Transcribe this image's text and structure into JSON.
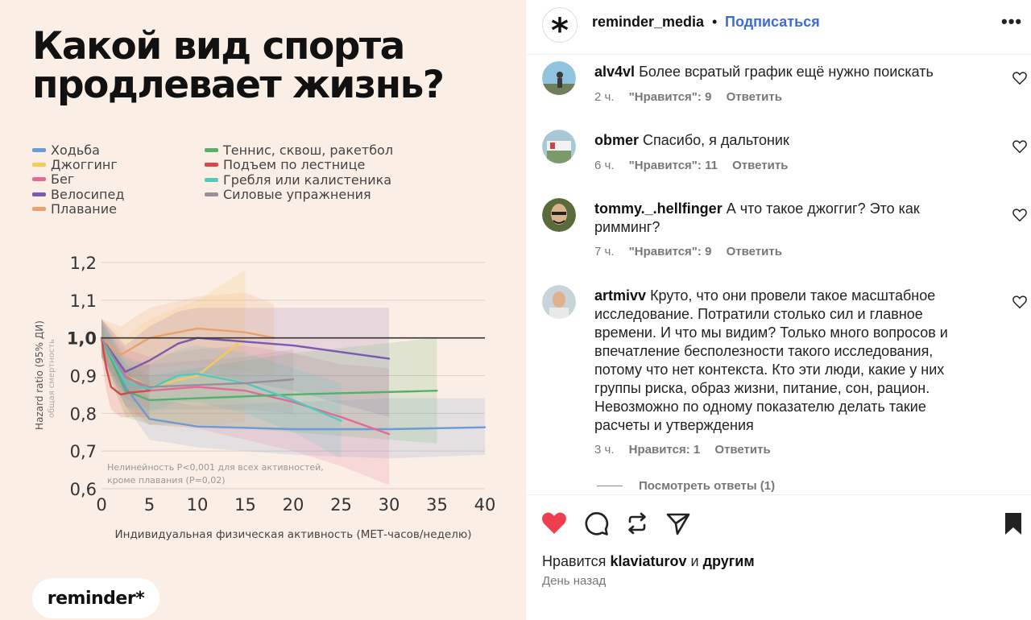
{
  "post": {
    "headline": [
      "Какой вид спорта",
      "продлевает жизнь?"
    ],
    "logo": "reminder*",
    "legend": [
      {
        "label": "Ходьба",
        "color": "#6d9bd3"
      },
      {
        "label": "Джоггинг",
        "color": "#f5c95a"
      },
      {
        "label": "Бег",
        "color": "#e46a95"
      },
      {
        "label": "Велосипед",
        "color": "#7a5bb0"
      },
      {
        "label": "Плавание",
        "color": "#eda06a"
      },
      {
        "label": "Теннис, сквош, ракетбол",
        "color": "#56b06a"
      },
      {
        "label": "Подъем по лестнице",
        "color": "#d6494a"
      },
      {
        "label": "Гребля или калистеника",
        "color": "#52c8c0"
      },
      {
        "label": "Силовые упражнения",
        "color": "#9a8e9a"
      }
    ]
  },
  "chart_data": {
    "type": "line",
    "ylabel": "Hazard ratio (95% ДИ)",
    "ylabel_sub": "общая смертность",
    "xlabel": "Индивидуальная физическая активность (МЕТ-часов/неделю)",
    "xlim": [
      0,
      40
    ],
    "ylim": [
      0.6,
      1.2
    ],
    "x_ticks": [
      "0",
      "5",
      "10",
      "15",
      "20",
      "25",
      "30",
      "35",
      "40"
    ],
    "y_ticks": [
      "0,6",
      "0,7",
      "0,8",
      "0,9",
      "1,0",
      "1,1",
      "1,2"
    ],
    "reference_line": 1.0,
    "note": [
      "Нелинейность P<0,001 для всех активностей,",
      "кроме плавания (P=0,02)"
    ],
    "series": [
      {
        "name": "Ходьба",
        "color": "#6d9bd3",
        "x": [
          0,
          2.5,
          5,
          10,
          20,
          30,
          40
        ],
        "y": [
          1.0,
          0.87,
          0.785,
          0.765,
          0.758,
          0.758,
          0.763
        ],
        "band": [
          [
            0.96,
            1.04
          ],
          [
            0.82,
            0.92
          ],
          [
            0.73,
            0.84
          ],
          [
            0.71,
            0.82
          ],
          [
            0.69,
            0.83
          ],
          [
            0.68,
            0.84
          ],
          [
            0.69,
            0.84
          ]
        ]
      },
      {
        "name": "Джоггинг",
        "color": "#f5c95a",
        "x": [
          0,
          2.5,
          5,
          10,
          15
        ],
        "y": [
          1.0,
          0.9,
          0.87,
          0.9,
          1.0
        ],
        "band": [
          [
            0.95,
            1.05
          ],
          [
            0.8,
            1.0
          ],
          [
            0.77,
            1.05
          ],
          [
            0.76,
            1.1
          ],
          [
            0.78,
            1.18
          ]
        ]
      },
      {
        "name": "Бег",
        "color": "#e46a95",
        "x": [
          0,
          2.5,
          5,
          10,
          15,
          20,
          25,
          30
        ],
        "y": [
          1.0,
          0.9,
          0.86,
          0.87,
          0.86,
          0.83,
          0.79,
          0.745
        ],
        "band": [
          [
            0.95,
            1.05
          ],
          [
            0.82,
            0.97
          ],
          [
            0.77,
            0.95
          ],
          [
            0.76,
            0.97
          ],
          [
            0.73,
            0.98
          ],
          [
            0.7,
            0.96
          ],
          [
            0.66,
            0.93
          ],
          [
            0.61,
            0.92
          ]
        ]
      },
      {
        "name": "Велосипед",
        "color": "#7a5bb0",
        "x": [
          0,
          2.5,
          5,
          8,
          10,
          20,
          30
        ],
        "y": [
          1.0,
          0.91,
          0.94,
          0.985,
          1.0,
          0.98,
          0.945
        ],
        "band": [
          [
            0.95,
            1.05
          ],
          [
            0.85,
            0.98
          ],
          [
            0.87,
            1.03
          ],
          [
            0.9,
            1.07
          ],
          [
            0.91,
            1.08
          ],
          [
            0.86,
            1.08
          ],
          [
            0.79,
            1.08
          ]
        ]
      },
      {
        "name": "Плавание",
        "color": "#eda06a",
        "x": [
          0,
          2,
          5,
          10,
          15,
          18
        ],
        "y": [
          1.0,
          0.955,
          1.0,
          1.025,
          1.015,
          1.0
        ],
        "band": [
          [
            0.95,
            1.05
          ],
          [
            0.88,
            1.03
          ],
          [
            0.92,
            1.08
          ],
          [
            0.93,
            1.11
          ],
          [
            0.91,
            1.12
          ],
          [
            0.9,
            1.09
          ]
        ]
      },
      {
        "name": "Теннис, сквош, ракетбол",
        "color": "#56b06a",
        "x": [
          0,
          2.5,
          5,
          10,
          20,
          35
        ],
        "y": [
          1.0,
          0.86,
          0.835,
          0.84,
          0.85,
          0.86
        ],
        "band": [
          [
            0.95,
            1.05
          ],
          [
            0.79,
            0.93
          ],
          [
            0.77,
            0.9
          ],
          [
            0.77,
            0.92
          ],
          [
            0.75,
            0.96
          ],
          [
            0.72,
            1.0
          ]
        ]
      },
      {
        "name": "Подъем по лестнице",
        "color": "#d6494a",
        "x": [
          0,
          0.5,
          1,
          2,
          3,
          5
        ],
        "y": [
          1.0,
          0.92,
          0.87,
          0.85,
          0.855,
          0.86
        ],
        "band": [
          [
            0.95,
            1.05
          ],
          [
            0.86,
            0.98
          ],
          [
            0.81,
            0.93
          ],
          [
            0.79,
            0.91
          ],
          [
            0.79,
            0.92
          ],
          [
            0.79,
            0.93
          ]
        ]
      },
      {
        "name": "Гребля или калистеника",
        "color": "#52c8c0",
        "x": [
          0,
          2.5,
          5,
          8,
          10,
          15,
          20,
          25
        ],
        "y": [
          1.0,
          0.88,
          0.865,
          0.9,
          0.905,
          0.88,
          0.835,
          0.78
        ],
        "band": [
          [
            0.95,
            1.05
          ],
          [
            0.82,
            0.94
          ],
          [
            0.8,
            0.93
          ],
          [
            0.83,
            0.97
          ],
          [
            0.83,
            0.98
          ],
          [
            0.8,
            0.96
          ],
          [
            0.75,
            0.92
          ],
          [
            0.68,
            0.88
          ]
        ]
      },
      {
        "name": "Силовые упражнения",
        "color": "#9a8e9a",
        "x": [
          0,
          2.5,
          5,
          10,
          15,
          20
        ],
        "y": [
          1.0,
          0.895,
          0.87,
          0.875,
          0.88,
          0.89
        ],
        "band": [
          [
            0.95,
            1.05
          ],
          [
            0.84,
            0.95
          ],
          [
            0.81,
            0.93
          ],
          [
            0.81,
            0.94
          ],
          [
            0.81,
            0.95
          ],
          [
            0.8,
            0.97
          ]
        ]
      }
    ]
  },
  "ig": {
    "username": "reminder_media",
    "dot": "•",
    "follow": "Подписаться",
    "more": "•••",
    "comments": [
      {
        "user": "alv4vl",
        "text": "Более всратый график ещё нужно поискать",
        "time": "2 ч.",
        "likes": "\"Нравится\": 9",
        "reply": "Ответить"
      },
      {
        "user": "obmer",
        "text": "Спасибо, я дальтоник",
        "time": "6 ч.",
        "likes": "\"Нравится\": 11",
        "reply": "Ответить"
      },
      {
        "user": "tommy._.hellfinger",
        "text": "А что такое джоггиг? Это как римминг?",
        "time": "7 ч.",
        "likes": "\"Нравится\": 9",
        "reply": "Ответить"
      },
      {
        "user": "artmivv",
        "text": "Круто, что они провели такое масштабное исследование. Потратили столько сил и главное времени. И что мы видим? Только много вопросов и впечатление бесполезности такого исследования, потому что нет контекста. Кто эти люди, какие у них группы риска, образ жизни, питание, сон, рацион. Невозможно по одному показателю делать такие расчеты и утверждения",
        "time": "3 ч.",
        "likes": "Нравится: 1",
        "reply": "Ответить"
      }
    ],
    "view_replies": "Посмотреть ответы (1)",
    "liked_by_prefix": "Нравится",
    "liked_by_user": "klaviaturov",
    "liked_by_and": "и",
    "liked_by_others": "другим",
    "time_ago": "День назад",
    "colors": {
      "like_red": "#ef3e4f",
      "follow_blue": "#3d6bd8"
    }
  }
}
